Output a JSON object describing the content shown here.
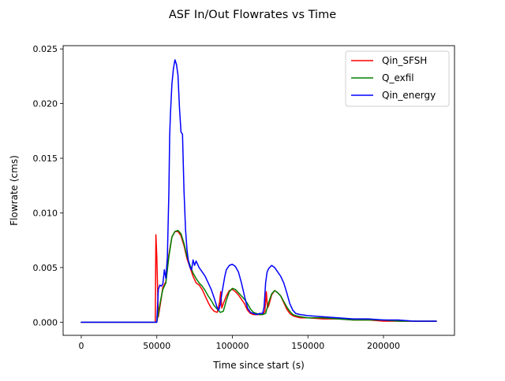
{
  "chart_data": {
    "type": "line",
    "title": "ASF In/Out Flowrates vs Time",
    "xlabel": "Time since start (s)",
    "ylabel": "Flowrate (cms)",
    "xlim": [
      -12000,
      247000
    ],
    "ylim": [
      -0.0012,
      0.0253
    ],
    "xticks": [
      0,
      50000,
      100000,
      150000,
      200000
    ],
    "xtick_labels": [
      "0",
      "50000",
      "100000",
      "150000",
      "200000"
    ],
    "yticks": [
      0.0,
      0.005,
      0.01,
      0.015,
      0.02,
      0.025
    ],
    "ytick_labels": [
      "0.000",
      "0.005",
      "0.010",
      "0.015",
      "0.020",
      "0.025"
    ],
    "grid": false,
    "legend_position": "top-right",
    "series": [
      {
        "name": "Qin_SFSH",
        "color": "#ff0000",
        "x": [
          0,
          20000,
          49000,
          49400,
          50000,
          51000,
          52500,
          54000,
          56000,
          58000,
          60000,
          62000,
          64000,
          66000,
          68000,
          70000,
          72000,
          74000,
          76000,
          78000,
          80000,
          82000,
          84000,
          86000,
          88000,
          90000,
          91500,
          92300,
          93000,
          94000,
          96000,
          98000,
          100000,
          102000,
          104000,
          106000,
          108000,
          110000,
          112000,
          114000,
          116000,
          118000,
          120000,
          121500,
          122500,
          123200,
          124000,
          126000,
          128000,
          130000,
          132000,
          134000,
          136000,
          138000,
          140000,
          142000,
          145000,
          150000,
          160000,
          170000,
          180000,
          190000,
          200000,
          210000,
          220000,
          230000,
          235000
        ],
        "y": [
          0.0,
          0.0,
          0.0,
          0.008,
          0.006,
          0.0005,
          0.0018,
          0.0032,
          0.0037,
          0.0062,
          0.0078,
          0.0083,
          0.0083,
          0.0079,
          0.007,
          0.0058,
          0.005,
          0.0042,
          0.0036,
          0.0034,
          0.003,
          0.0024,
          0.0018,
          0.0013,
          0.001,
          0.0009,
          0.0018,
          0.0028,
          0.0013,
          0.0017,
          0.0024,
          0.0029,
          0.003,
          0.0028,
          0.0025,
          0.0021,
          0.0017,
          0.0011,
          0.0008,
          0.0007,
          0.0007,
          0.0007,
          0.0007,
          0.001,
          0.0028,
          0.0013,
          0.0015,
          0.0025,
          0.0029,
          0.0027,
          0.0024,
          0.0018,
          0.0012,
          0.0008,
          0.0006,
          0.0005,
          0.0004,
          0.0004,
          0.0003,
          0.0003,
          0.0002,
          0.0002,
          0.0001,
          0.0001,
          0.0001,
          0.0001,
          0.0001
        ]
      },
      {
        "name": "Q_exfil",
        "color": "#008000",
        "x": [
          0,
          20000,
          49000,
          50000,
          51000,
          52500,
          54000,
          56000,
          58000,
          60000,
          62000,
          64000,
          66000,
          68000,
          70000,
          72000,
          74000,
          76000,
          78000,
          80000,
          82000,
          84000,
          86000,
          88000,
          90000,
          92000,
          94000,
          96000,
          98000,
          100000,
          102000,
          104000,
          106000,
          108000,
          110000,
          112000,
          114000,
          116000,
          118000,
          120000,
          122000,
          124000,
          126000,
          128000,
          130000,
          132000,
          134000,
          136000,
          138000,
          140000,
          142000,
          145000,
          150000,
          160000,
          170000,
          180000,
          190000,
          200000,
          210000,
          220000,
          230000,
          235000
        ],
        "y": [
          0.0,
          0.0,
          0.0,
          0.0,
          0.0008,
          0.002,
          0.003,
          0.0036,
          0.006,
          0.0078,
          0.0083,
          0.0084,
          0.0081,
          0.0072,
          0.006,
          0.0052,
          0.0045,
          0.004,
          0.0036,
          0.0033,
          0.0029,
          0.0024,
          0.002,
          0.0015,
          0.0012,
          0.0009,
          0.001,
          0.002,
          0.0028,
          0.0031,
          0.003,
          0.0027,
          0.0024,
          0.0021,
          0.0017,
          0.0012,
          0.0009,
          0.0008,
          0.0007,
          0.0007,
          0.0008,
          0.0018,
          0.0026,
          0.0029,
          0.0027,
          0.0024,
          0.0019,
          0.0014,
          0.001,
          0.0007,
          0.0006,
          0.0005,
          0.0004,
          0.0004,
          0.0003,
          0.0002,
          0.0002,
          0.0002,
          0.0001,
          0.0001,
          0.0001,
          0.0001
        ]
      },
      {
        "name": "Qin_energy",
        "color": "#0000ff",
        "x": [
          0,
          20000,
          49000,
          50000,
          51000,
          52000,
          53000,
          54000,
          55000,
          56000,
          57000,
          58000,
          58500,
          59000,
          60000,
          61000,
          62000,
          63000,
          64000,
          65000,
          66000,
          67000,
          68000,
          69000,
          70000,
          71000,
          72000,
          73000,
          74000,
          75000,
          76000,
          78000,
          80000,
          82000,
          84000,
          86000,
          88000,
          90000,
          91000,
          92000,
          93000,
          94000,
          95000,
          96000,
          98000,
          100000,
          102000,
          104000,
          106000,
          108000,
          110000,
          112000,
          114000,
          116000,
          118000,
          120000,
          121000,
          122000,
          123000,
          124000,
          126000,
          128000,
          130000,
          132000,
          134000,
          136000,
          138000,
          140000,
          142000,
          145000,
          150000,
          160000,
          170000,
          180000,
          190000,
          200000,
          210000,
          220000,
          230000,
          235000
        ],
        "y": [
          0.0,
          0.0,
          0.0,
          0.0,
          0.003,
          0.0034,
          0.0033,
          0.0035,
          0.0048,
          0.004,
          0.006,
          0.012,
          0.017,
          0.019,
          0.0218,
          0.0232,
          0.024,
          0.0236,
          0.0226,
          0.0196,
          0.0174,
          0.0172,
          0.012,
          0.0085,
          0.0066,
          0.0055,
          0.005,
          0.0048,
          0.0057,
          0.0052,
          0.0056,
          0.005,
          0.0046,
          0.0042,
          0.0036,
          0.003,
          0.0022,
          0.0013,
          0.0011,
          0.0016,
          0.0026,
          0.0034,
          0.0042,
          0.0048,
          0.0052,
          0.0053,
          0.0051,
          0.0046,
          0.0036,
          0.0024,
          0.0013,
          0.0009,
          0.0008,
          0.0007,
          0.0008,
          0.0008,
          0.0014,
          0.0036,
          0.0046,
          0.0049,
          0.0052,
          0.005,
          0.0046,
          0.0042,
          0.0036,
          0.0027,
          0.0017,
          0.0011,
          0.0008,
          0.0007,
          0.0006,
          0.0005,
          0.0004,
          0.0003,
          0.0003,
          0.0002,
          0.0002,
          0.0001,
          0.0001,
          0.0001
        ]
      }
    ]
  }
}
